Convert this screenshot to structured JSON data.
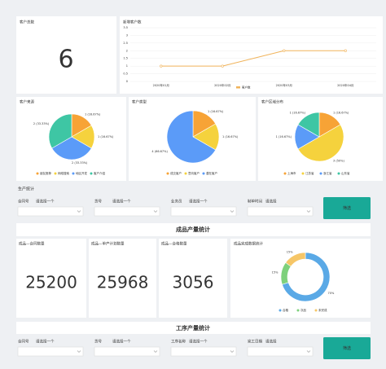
{
  "customer_total": {
    "title": "客户总数",
    "value": 6
  },
  "customer_trend": {
    "type": "line",
    "title": "新增客户数",
    "categories": [
      "2020年01月",
      "2020年02月",
      "2020年03月",
      "2020年04月"
    ],
    "series": [
      {
        "name": "客户数",
        "color": "#f0b35a",
        "values": [
          1,
          1,
          2,
          2
        ]
      }
    ],
    "ylim": [
      0,
      3.5
    ],
    "yticks": [
      0,
      0.5,
      1,
      1.5,
      2,
      2.5,
      3,
      3.5
    ],
    "grid": true
  },
  "customer_pies": [
    {
      "type": "pie",
      "title": "客户来源",
      "categories": [
        "朋友推荐",
        "网络搜索",
        "地区开发",
        "客户介绍"
      ],
      "values": [
        1,
        1,
        2,
        2
      ],
      "value_labels": [
        "1 (16.67%)",
        "1 (16.67%)",
        "2 (33.33%)",
        "2 (33.33%)"
      ],
      "colors": [
        "#f7a336",
        "#f5d23d",
        "#5b9bf8",
        "#3ec6a4"
      ]
    },
    {
      "type": "pie",
      "title": "客户类型",
      "categories": [
        "成交客户",
        "意向客户",
        "潜在客户"
      ],
      "values": [
        1,
        1,
        4
      ],
      "value_labels": [
        "1 (16.67%)",
        "1 (16.67%)",
        "4 (66.67%)"
      ],
      "colors": [
        "#f7a336",
        "#f5d23d",
        "#5b9bf8"
      ]
    },
    {
      "type": "pie",
      "title": "客户区域分布",
      "categories": [
        "上海市",
        "江苏省",
        "浙江省",
        "山东省"
      ],
      "values": [
        1,
        3,
        1,
        1
      ],
      "value_labels": [
        "1 (16.67%)",
        "3 (50%)",
        "1 (16.67%)",
        "1 (16.67%)"
      ],
      "colors": [
        "#f7a336",
        "#f5d23d",
        "#5b9bf8",
        "#3ec6a4"
      ]
    }
  ],
  "production": {
    "title": "生产统计",
    "filters": [
      {
        "label": "合同号",
        "placeholder": "请选择一个"
      },
      {
        "label": "货号",
        "placeholder": "请选择一个"
      },
      {
        "label": "业务员",
        "placeholder": "请选择一个"
      },
      {
        "label": "制单时间",
        "placeholder": "请选择"
      }
    ],
    "button": "筛选"
  },
  "product_stats": {
    "title": "成品产量统计",
    "cards": [
      {
        "title": "成品—合同数量",
        "value": 25200
      },
      {
        "title": "成品—单产计划数量",
        "value": 25968
      },
      {
        "title": "成品—合格数量",
        "value": 3056
      }
    ],
    "donut": {
      "type": "pie",
      "title": "成品完成数据统计",
      "categories": [
        "合格",
        "次品",
        "未完成"
      ],
      "values": [
        70,
        15,
        15
      ],
      "value_labels": [
        "70%",
        "15%",
        "15%"
      ],
      "colors": [
        "#5aa9e6",
        "#7ed17c",
        "#f6c667"
      ]
    }
  },
  "process_stats": {
    "title": "工序产量统计",
    "filters": [
      {
        "label": "合同号",
        "placeholder": "请选择一个"
      },
      {
        "label": "货号",
        "placeholder": "请选择一个"
      },
      {
        "label": "工序名称",
        "placeholder": "请选择一个"
      },
      {
        "label": "完工日期",
        "placeholder": "请选择"
      }
    ],
    "button": "筛选"
  }
}
